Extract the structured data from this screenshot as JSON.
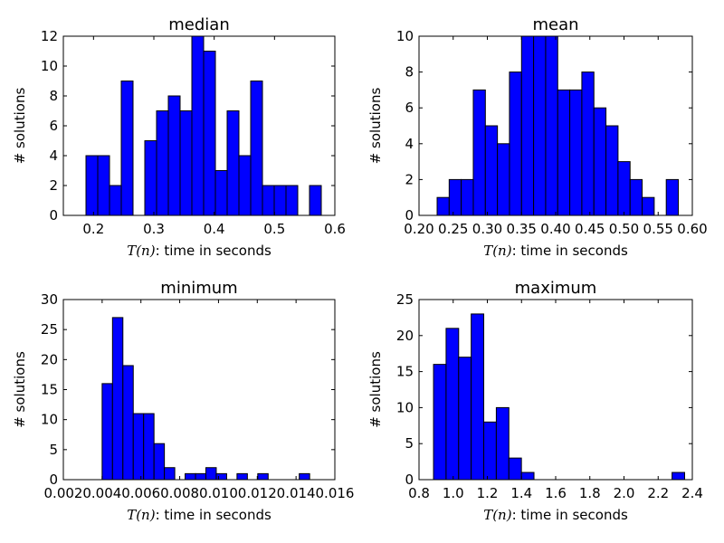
{
  "chart_data": [
    {
      "type": "bar",
      "subtype": "histogram",
      "title": "median",
      "xlabel": {
        "math": "T(n)",
        "text": ": time in seconds"
      },
      "ylabel": "# solutions",
      "xlim": [
        0.15,
        0.6
      ],
      "ylim": [
        0,
        12
      ],
      "xticks": [
        "0.2",
        "0.3",
        "0.4",
        "0.5",
        "0.6"
      ],
      "yticks": [
        "0",
        "2",
        "4",
        "6",
        "8",
        "10",
        "12"
      ],
      "bin_start": 0.1875,
      "bin_width": 0.0195,
      "values": [
        4,
        4,
        2,
        9,
        0,
        5,
        7,
        8,
        7,
        12,
        11,
        3,
        7,
        4,
        9,
        2,
        2,
        2,
        0,
        2
      ],
      "bar_color": "#0000ff"
    },
    {
      "type": "bar",
      "subtype": "histogram",
      "title": "mean",
      "xlabel": {
        "math": "T(n)",
        "text": ": time in seconds"
      },
      "ylabel": "# solutions",
      "xlim": [
        0.2,
        0.6
      ],
      "ylim": [
        0,
        10
      ],
      "xticks": [
        "0.20",
        "0.25",
        "0.30",
        "0.35",
        "0.40",
        "0.45",
        "0.50",
        "0.55",
        "0.60"
      ],
      "yticks": [
        "0",
        "2",
        "4",
        "6",
        "8",
        "10"
      ],
      "bin_start": 0.2265,
      "bin_width": 0.01765,
      "values": [
        1,
        2,
        2,
        7,
        5,
        4,
        8,
        10,
        10,
        10,
        7,
        7,
        8,
        6,
        5,
        3,
        2,
        1,
        0,
        2
      ],
      "bar_color": "#0000ff"
    },
    {
      "type": "bar",
      "subtype": "histogram",
      "title": "minimum",
      "xlabel": {
        "math": "T(n)",
        "text": ": time in seconds"
      },
      "ylabel": "# solutions",
      "xlim": [
        0.002,
        0.016
      ],
      "ylim": [
        0,
        30
      ],
      "xticks": [
        "0.002",
        "0.004",
        "0.006",
        "0.008",
        "0.010",
        "0.012",
        "0.014",
        "0.016"
      ],
      "yticks": [
        "0",
        "5",
        "10",
        "15",
        "20",
        "25",
        "30"
      ],
      "bin_start": 0.004,
      "bin_width": 0.000535,
      "values": [
        16,
        27,
        19,
        11,
        11,
        6,
        2,
        0,
        1,
        1,
        2,
        1,
        0,
        1,
        0,
        1,
        0,
        0,
        0,
        1
      ],
      "bar_color": "#0000ff"
    },
    {
      "type": "bar",
      "subtype": "histogram",
      "title": "maximum",
      "xlabel": {
        "math": "T(n)",
        "text": ": time in seconds"
      },
      "ylabel": "# solutions",
      "xlim": [
        0.8,
        2.4
      ],
      "ylim": [
        0,
        25
      ],
      "xticks": [
        "0.8",
        "1.0",
        "1.2",
        "1.4",
        "1.6",
        "1.8",
        "2.0",
        "2.2",
        "2.4"
      ],
      "yticks": [
        "0",
        "5",
        "10",
        "15",
        "20",
        "25"
      ],
      "bin_start": 0.885,
      "bin_width": 0.0735,
      "values": [
        16,
        21,
        17,
        23,
        8,
        10,
        3,
        1,
        0,
        0,
        0,
        0,
        0,
        0,
        0,
        0,
        0,
        0,
        0,
        1
      ],
      "bar_color": "#0000ff"
    }
  ]
}
